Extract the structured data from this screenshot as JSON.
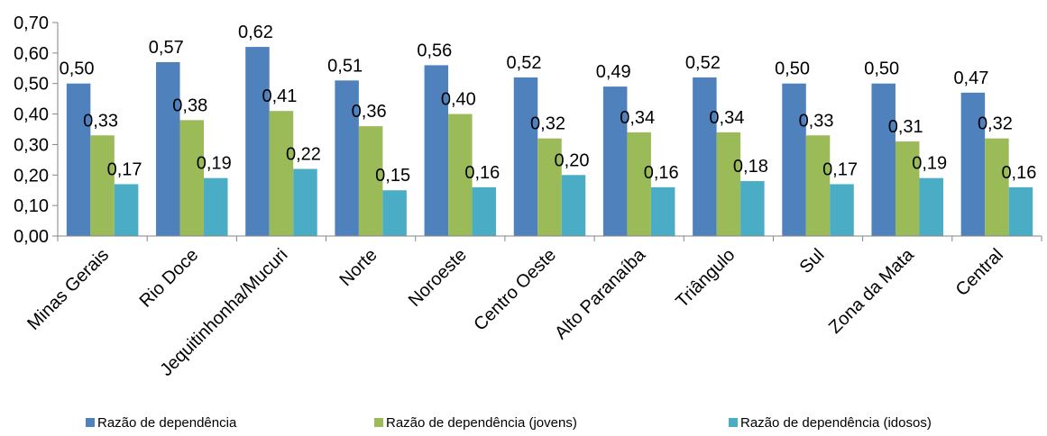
{
  "chart_data": {
    "type": "bar",
    "categories": [
      "Minas Gerais",
      "Rio Doce",
      "Jequitinhonha/Mucuri",
      "Norte",
      "Noroeste",
      "Centro Oeste",
      "Alto Paranaíba",
      "Triângulo",
      "Sul",
      "Zona da Mata",
      "Central"
    ],
    "series": [
      {
        "name": "Razão de dependência",
        "color": "#4F81BD",
        "values": [
          0.5,
          0.57,
          0.62,
          0.51,
          0.56,
          0.52,
          0.49,
          0.52,
          0.5,
          0.5,
          0.47
        ],
        "labels": [
          "0,50",
          "0,57",
          "0,62",
          "0,51",
          "0,56",
          "0,52",
          "0,49",
          "0,52",
          "0,50",
          "0,50",
          "0,47"
        ]
      },
      {
        "name": "Razão de dependência (jovens)",
        "color": "#9BBB59",
        "values": [
          0.33,
          0.38,
          0.41,
          0.36,
          0.4,
          0.32,
          0.34,
          0.34,
          0.33,
          0.31,
          0.32
        ],
        "labels": [
          "0,33",
          "0,38",
          "0,41",
          "0,36",
          "0,40",
          "0,32",
          "0,34",
          "0,34",
          "0,33",
          "0,31",
          "0,32"
        ]
      },
      {
        "name": "Razão de dependência (idosos)",
        "color": "#4BACC6",
        "values": [
          0.17,
          0.19,
          0.22,
          0.15,
          0.16,
          0.2,
          0.16,
          0.18,
          0.17,
          0.19,
          0.16
        ],
        "labels": [
          "0,17",
          "0,19",
          "0,22",
          "0,15",
          "0,16",
          "0,20",
          "0,16",
          "0,18",
          "0,17",
          "0,19",
          "0,16"
        ]
      }
    ],
    "yticks": [
      "0,00",
      "0,10",
      "0,20",
      "0,30",
      "0,40",
      "0,50",
      "0,60",
      "0,70"
    ],
    "ylim": [
      0,
      0.7
    ],
    "grid": false,
    "legend_position": "bottom"
  }
}
